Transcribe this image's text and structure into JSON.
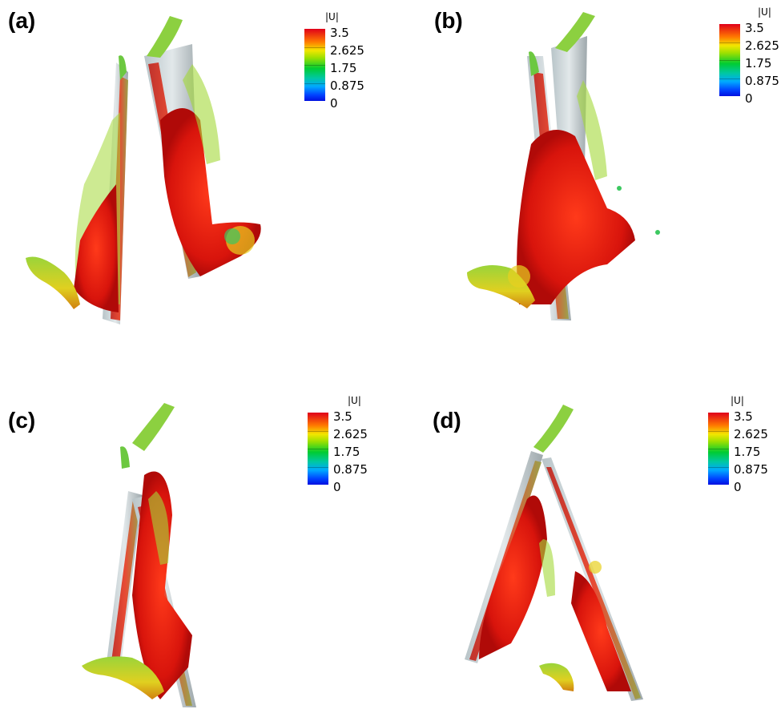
{
  "panels": [
    {
      "label": "(a)"
    },
    {
      "label": "(b)"
    },
    {
      "label": "(c)"
    },
    {
      "label": "(d)"
    }
  ],
  "legend": {
    "title": "|U|",
    "ticks": [
      "3.5",
      "2.625",
      "1.75",
      "0.875",
      "0"
    ],
    "colors": [
      "#e0001a",
      "#ff7a00",
      "#f2e600",
      "#00cc33",
      "#00a8ff",
      "#0010e0"
    ]
  }
}
